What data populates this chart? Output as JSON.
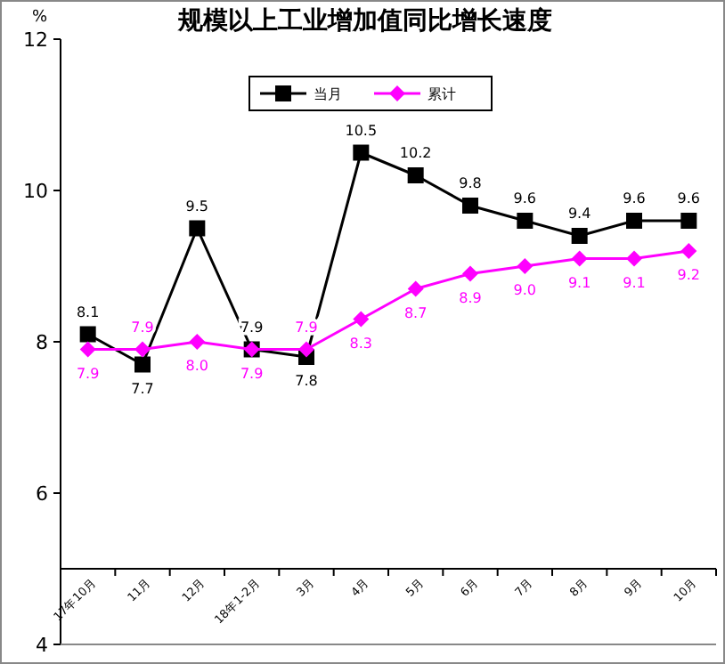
{
  "chart_data": {
    "type": "line",
    "title": "规模以上工业增加值同比增长速度",
    "ylabel": "%",
    "categories": [
      "17年10月",
      "11月",
      "12月",
      "18年1-2月",
      "3月",
      "4月",
      "5月",
      "6月",
      "7月",
      "8月",
      "9月",
      "10月"
    ],
    "series": [
      {
        "name": "当月",
        "color": "#000000",
        "marker": "square",
        "values": [
          8.1,
          7.7,
          9.5,
          7.9,
          7.8,
          10.5,
          10.2,
          9.8,
          9.6,
          9.4,
          9.6,
          9.6
        ],
        "value_labels": [
          "8.1",
          "7.7",
          "9.5",
          "7.9",
          "7.8",
          "10.5",
          "10.2",
          "9.8",
          "9.6",
          "9.4",
          "9.6",
          "9.6"
        ]
      },
      {
        "name": "累计",
        "color": "#ff00ff",
        "marker": "diamond",
        "values": [
          7.9,
          7.9,
          8.0,
          7.9,
          7.9,
          8.3,
          8.7,
          8.9,
          9.0,
          9.1,
          9.1,
          9.2
        ],
        "value_labels": [
          "7.9",
          "7.9",
          "8.0",
          "7.9",
          "7.9",
          "8.3",
          "8.7",
          "8.9",
          "9.0",
          "9.1",
          "9.1",
          "9.2"
        ]
      }
    ],
    "ylim": [
      4,
      12
    ],
    "yticks": [
      4,
      6,
      8,
      10,
      12
    ],
    "legend": "top",
    "grid": false
  }
}
